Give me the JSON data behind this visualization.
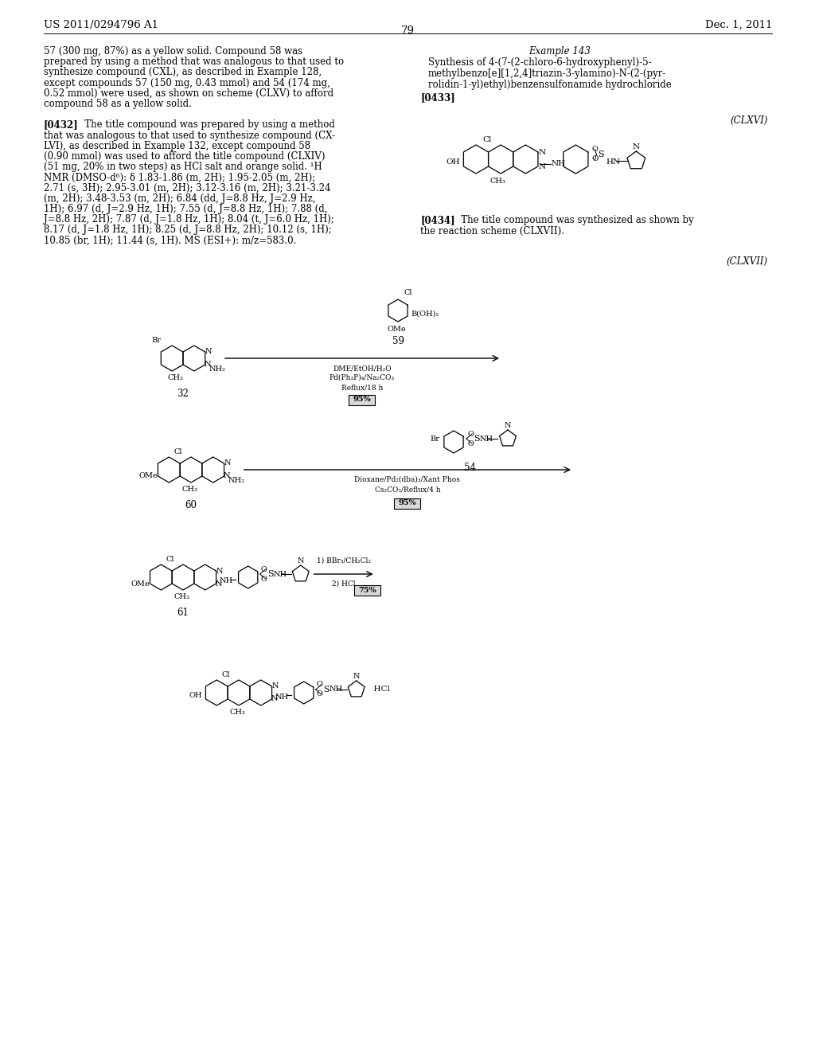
{
  "bg_color": "#ffffff",
  "header_left": "US 2011/0294796 A1",
  "header_right": "Dec. 1, 2011",
  "page_number": "79",
  "left_col_lines": [
    "57 (300 mg, 87%) as a yellow solid. Compound 58 was",
    "prepared by using a method that was analogous to that used to",
    "synthesize compound (CXL), as described in Example 128,",
    "except compounds 57 (150 mg, 0.43 mmol) and 54 (174 mg,",
    "0.52 mmol) were used, as shown on scheme (CLXV) to afford",
    "compound 58 as a yellow solid.",
    "",
    "[0432]",
    "that was analogous to that used to synthesize compound (CX-",
    "LVI), as described in Example 132, except compound 58",
    "(0.90 mmol) was used to afford the title compound (CLXIV)",
    "(51 mg, 20% in two steps) as HCl salt and orange solid. ¹H",
    "NMR (DMSO-d⁶): δ 1.83-1.86 (m, 2H); 1.95-2.05 (m, 2H);",
    "2.71 (s, 3H); 2.95-3.01 (m, 2H); 3.12-3.16 (m, 2H); 3.21-3.24",
    "(m, 2H); 3.48-3.53 (m, 2H); 6.84 (dd, J=8.8 Hz, J=2.9 Hz,",
    "1H); 6.97 (d, J=2.9 Hz, 1H); 7.55 (d, J=8.8 Hz, 1H); 7.88 (d,",
    "J=8.8 Hz, 2H); 7.87 (d, J=1.8 Hz, 1H); 8.04 (t, J=6.0 Hz, 1H);",
    "8.17 (d, J=1.8 Hz, 1H); 8.25 (d, J=8.8 Hz, 2H); 10.12 (s, 1H);",
    "10.85 (br, 1H); 11.44 (s, 1H). MS (ESI+): m/z=583.0."
  ],
  "para0432_rest": "   The title compound was prepared by using a method",
  "right_col_title": "Example 143",
  "right_subtitle_lines": [
    "Synthesis of 4-(7-(2-chloro-6-hydroxyphenyl)-5-",
    "methylbenzo[e][1,2,4]triazin-3-ylamino)-N-(2-(pyr-",
    "rolidin-1-yl)ethyl)benzensulfonamide hydrochloride"
  ],
  "ref0433": "[0433]",
  "ref0434_bold": "[0434]",
  "ref0434_rest": "   The title compound was synthesized as shown by",
  "ref0434_line2": "the reaction scheme (CLXVII).",
  "clxvi_label": "(CLXVI)",
  "clxvii_label": "(CLXVII)",
  "step1_above": "59",
  "step1_cond1": "DME/EtOH/H₂O",
  "step1_cond2": "Pd(Ph₃P)₄/Na₂CO₃",
  "step1_cond3": "Reflux/18 h",
  "step1_yield": "95%",
  "step2_above": "54",
  "step2_cond1": "Dioxane/Pd₂(dba)₃/Xant Phos",
  "step2_cond2": "Cs₂CO₃/Reflux/4 h",
  "step2_yield": "95%",
  "step3_cond1": "1) BBr₃/CH₂Cl₂",
  "step3_cond2": "2) HCl",
  "step3_yield": "75%",
  "label32": "32",
  "label60": "60",
  "label61": "61"
}
